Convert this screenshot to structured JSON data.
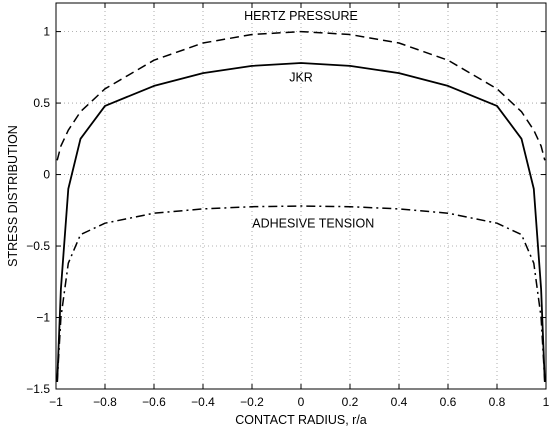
{
  "chart_data": {
    "type": "line",
    "title": "",
    "xlabel": "CONTACT  RADIUS, r/a",
    "ylabel": "STRESS  DISTRIBUTION",
    "xlim": [
      -1,
      1
    ],
    "ylim": [
      -1.5,
      1.2
    ],
    "xticks": [
      "−1",
      "−0.8",
      "−0.6",
      "−0.4",
      "−0.2",
      "0",
      "0.2",
      "0.4",
      "0.6",
      "0.8",
      "1"
    ],
    "yticks": [
      "−1.5",
      "−1",
      "−0.5",
      "0",
      "0.5",
      "1"
    ],
    "grid": true,
    "series": [
      {
        "style": "dashed",
        "x": [
          -0.995,
          -0.98,
          -0.95,
          -0.9,
          -0.8,
          -0.6,
          -0.4,
          -0.2,
          0,
          0.2,
          0.4,
          0.6,
          0.8,
          0.9,
          0.95,
          0.98,
          0.995
        ],
        "y": [
          0.1,
          0.2,
          0.31,
          0.44,
          0.6,
          0.8,
          0.92,
          0.98,
          1.0,
          0.98,
          0.92,
          0.8,
          0.6,
          0.44,
          0.31,
          0.2,
          0.1
        ]
      },
      {
        "style": "solid",
        "x": [
          -0.995,
          -0.98,
          -0.95,
          -0.9,
          -0.8,
          -0.6,
          -0.4,
          -0.2,
          0,
          0.2,
          0.4,
          0.6,
          0.8,
          0.9,
          0.95,
          0.98,
          0.995
        ],
        "y": [
          -1.45,
          -0.8,
          -0.1,
          0.25,
          0.48,
          0.62,
          0.71,
          0.76,
          0.78,
          0.76,
          0.71,
          0.62,
          0.48,
          0.25,
          -0.1,
          -0.8,
          -1.45
        ]
      },
      {
        "style": "dashdot",
        "x": [
          -0.995,
          -0.98,
          -0.95,
          -0.9,
          -0.8,
          -0.6,
          -0.4,
          -0.2,
          0,
          0.2,
          0.4,
          0.6,
          0.8,
          0.9,
          0.95,
          0.98,
          0.995
        ],
        "y": [
          -1.45,
          -1.0,
          -0.62,
          -0.42,
          -0.34,
          -0.27,
          -0.24,
          -0.225,
          -0.22,
          -0.225,
          -0.24,
          -0.27,
          -0.34,
          -0.42,
          -0.62,
          -1.0,
          -1.45
        ]
      }
    ],
    "annotations": [
      {
        "text": "HERTZ PRESSURE",
        "x": 0,
        "y": 1.08
      },
      {
        "text": "JKR",
        "x": 0,
        "y": 0.65
      },
      {
        "text": "ADHESIVE TENSION",
        "x": 0.05,
        "y": -0.37
      }
    ]
  }
}
